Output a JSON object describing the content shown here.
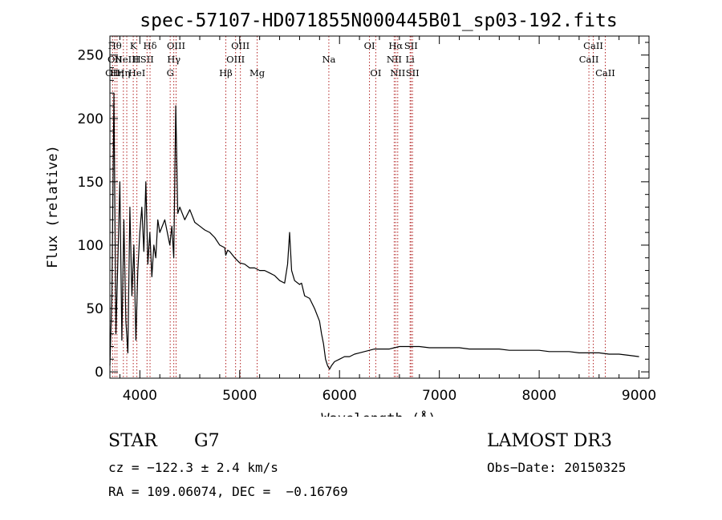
{
  "chart_data": {
    "type": "line",
    "title": "spec-57107-HD071855N000445B01_sp03-192.fits",
    "xlabel": "Wavelength (Å)",
    "ylabel": "Flux (relative)",
    "xlim": [
      3700,
      9100
    ],
    "ylim": [
      -5,
      265
    ],
    "xticks": [
      4000,
      5000,
      6000,
      7000,
      8000,
      9000
    ],
    "yticks": [
      0,
      50,
      100,
      150,
      200,
      250
    ],
    "grid": false,
    "series": [
      {
        "x": [
          3700,
          3720,
          3740,
          3760,
          3780,
          3800,
          3820,
          3840,
          3860,
          3880,
          3900,
          3920,
          3940,
          3960,
          3980,
          4000,
          4020,
          4040,
          4060,
          4080,
          4100,
          4120,
          4140,
          4160,
          4180,
          4200,
          4250,
          4300,
          4320,
          4340,
          4360,
          4380,
          4400,
          4450,
          4500,
          4550,
          4600,
          4650,
          4700,
          4750,
          4800,
          4850,
          4860,
          4880,
          4900,
          4950,
          5000,
          5050,
          5100,
          5150,
          5200,
          5250,
          5300,
          5350,
          5400,
          5450,
          5480,
          5500,
          5520,
          5550,
          5600,
          5620,
          5650,
          5700,
          5750,
          5800,
          5820,
          5840,
          5860,
          5880,
          5900,
          5920,
          5950,
          6000,
          6050,
          6100,
          6150,
          6200,
          6250,
          6300,
          6350,
          6400,
          6450,
          6500,
          6550,
          6600,
          6650,
          6700,
          6800,
          6900,
          7000,
          7100,
          7200,
          7300,
          7400,
          7500,
          7600,
          7700,
          7800,
          7900,
          8000,
          8100,
          8200,
          8300,
          8400,
          8500,
          8600,
          8700,
          8800,
          8900,
          9000
        ],
        "values": [
          5,
          60,
          220,
          30,
          90,
          150,
          25,
          120,
          40,
          15,
          130,
          60,
          100,
          25,
          80,
          110,
          130,
          95,
          150,
          85,
          110,
          75,
          100,
          90,
          120,
          110,
          120,
          100,
          115,
          90,
          210,
          125,
          130,
          120,
          128,
          118,
          115,
          112,
          110,
          106,
          100,
          98,
          92,
          96,
          95,
          90,
          86,
          85,
          82,
          82,
          80,
          80,
          78,
          76,
          72,
          70,
          85,
          110,
          80,
          72,
          69,
          70,
          60,
          58,
          50,
          40,
          30,
          22,
          10,
          5,
          2,
          5,
          8,
          10,
          12,
          12,
          14,
          15,
          16,
          17,
          18,
          18,
          18,
          18,
          19,
          20,
          20,
          20,
          20,
          19,
          19,
          19,
          19,
          18,
          18,
          18,
          18,
          17,
          17,
          17,
          17,
          16,
          16,
          16,
          15,
          15,
          15,
          14,
          14,
          13,
          12
        ]
      }
    ],
    "lines": [
      {
        "wl": 3727,
        "labels": [
          "OII"
        ],
        "row": 3
      },
      {
        "wl": 3750,
        "labels": [
          "Hθ",
          "OII"
        ],
        "row": 1
      },
      {
        "wl": 3771,
        "labels": [
          "Hη"
        ],
        "row": 3
      },
      {
        "wl": 3835,
        "labels": [
          "Hη"
        ],
        "row": 3
      },
      {
        "wl": 3869,
        "labels": [
          "NeIII"
        ],
        "row": 2
      },
      {
        "wl": 3934,
        "labels": [
          "K"
        ],
        "row": 1
      },
      {
        "wl": 3970,
        "labels": [
          "H",
          "HeI"
        ],
        "row": 2
      },
      {
        "wl": 4072,
        "labels": [
          "SII"
        ],
        "row": 2
      },
      {
        "wl": 4102,
        "labels": [
          "Hδ"
        ],
        "row": 1
      },
      {
        "wl": 4304,
        "labels": [
          "G"
        ],
        "row": 3
      },
      {
        "wl": 4340,
        "labels": [
          "Hγ"
        ],
        "row": 2
      },
      {
        "wl": 4363,
        "labels": [
          "OIII"
        ],
        "row": 1
      },
      {
        "wl": 4861,
        "labels": [
          "Hβ"
        ],
        "row": 3
      },
      {
        "wl": 4959,
        "labels": [
          "OIII"
        ],
        "row": 2
      },
      {
        "wl": 5007,
        "labels": [
          "OIII"
        ],
        "row": 1
      },
      {
        "wl": 5175,
        "labels": [
          "Mg"
        ],
        "row": 3
      },
      {
        "wl": 5893,
        "labels": [
          "Na"
        ],
        "row": 2
      },
      {
        "wl": 6300,
        "labels": [
          "OI"
        ],
        "row": 1
      },
      {
        "wl": 6363,
        "labels": [
          "OI"
        ],
        "row": 3
      },
      {
        "wl": 6548,
        "labels": [
          "NII"
        ],
        "row": 2
      },
      {
        "wl": 6563,
        "labels": [
          "Hα"
        ],
        "row": 1
      },
      {
        "wl": 6583,
        "labels": [
          "NII"
        ],
        "row": 3
      },
      {
        "wl": 6707,
        "labels": [
          "Li"
        ],
        "row": 2
      },
      {
        "wl": 6716,
        "labels": [
          "SII"
        ],
        "row": 1
      },
      {
        "wl": 6731,
        "labels": [
          "SII"
        ],
        "row": 3
      },
      {
        "wl": 8498,
        "labels": [
          "CaII"
        ],
        "row": 2
      },
      {
        "wl": 8542,
        "labels": [
          "CaII"
        ],
        "row": 1
      },
      {
        "wl": 8662,
        "labels": [
          "CaII"
        ],
        "row": 3
      }
    ]
  },
  "info": {
    "class_label": "STAR",
    "subclass": "G7",
    "survey": "LAMOST DR3",
    "cz": "cz = −122.3 ± 2.4 km/s",
    "obs_date": "Obs−Date: 20150325",
    "coords": "RA = 109.06074, DEC =  −0.16769"
  },
  "colors": {
    "spectrum": "#000000",
    "line_markers": "#b22222"
  }
}
